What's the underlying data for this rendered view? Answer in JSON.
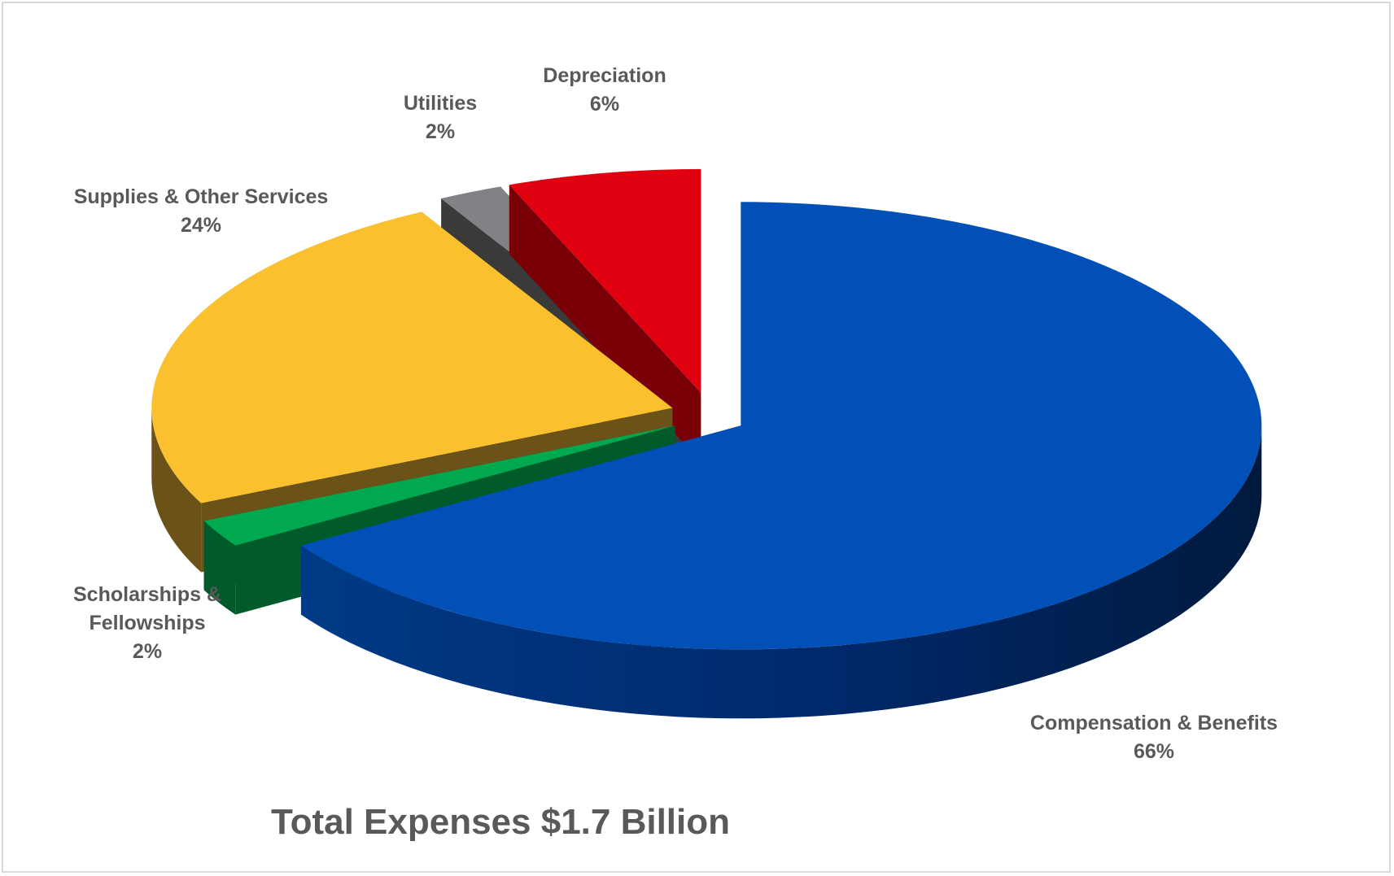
{
  "chart_data": {
    "type": "pie",
    "title": "Total Expenses  $1.7 Billion",
    "slices": [
      {
        "name_lines": [
          "Compensation & Benefits"
        ],
        "percent_label": "66%",
        "value": 66,
        "color": "#0050b8"
      },
      {
        "name_lines": [
          "Scholarships &",
          "Fellowships"
        ],
        "percent_label": "2%",
        "value": 2,
        "color": "#00a84f"
      },
      {
        "name_lines": [
          "Supplies & Other Services"
        ],
        "percent_label": "24%",
        "value": 24,
        "color": "#fbc02d"
      },
      {
        "name_lines": [
          "Utilities"
        ],
        "percent_label": "2%",
        "value": 2,
        "color": "#808285"
      },
      {
        "name_lines": [
          "Depreciation"
        ],
        "percent_label": "6%",
        "value": 6,
        "color": "#e00010"
      }
    ]
  }
}
